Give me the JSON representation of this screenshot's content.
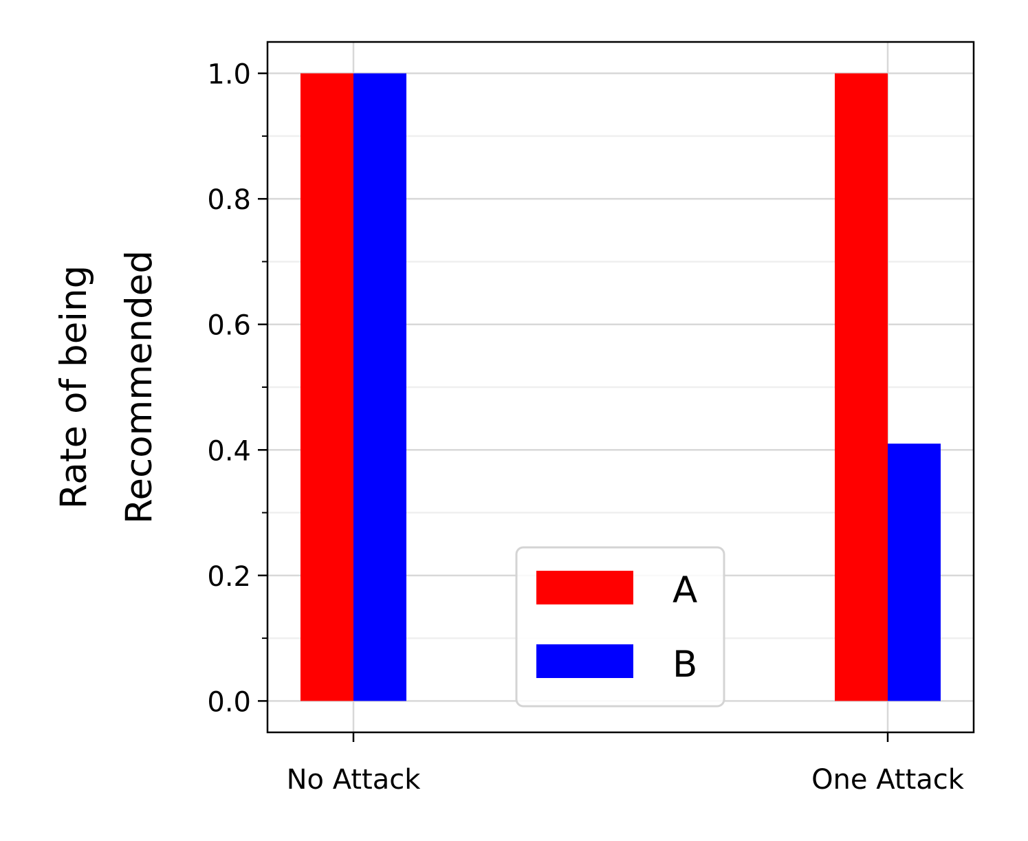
{
  "chart_data": {
    "type": "bar",
    "categories": [
      "No Attack",
      "One Attack"
    ],
    "series": [
      {
        "name": "A",
        "values": [
          1.0,
          1.0
        ],
        "color": "#ff0000"
      },
      {
        "name": "B",
        "values": [
          1.0,
          0.41
        ],
        "color": "#0000ff"
      }
    ],
    "ylabel_lines": [
      "Rate of being",
      "Recommended"
    ],
    "xlabel": "",
    "title": "",
    "ylim": [
      -0.05,
      1.05
    ],
    "y_ticks": [
      0.0,
      0.2,
      0.4,
      0.6,
      0.8,
      1.0
    ],
    "y_tick_labels": [
      "0.0",
      "0.2",
      "0.4",
      "0.6",
      "0.8",
      "1.0"
    ],
    "y_minor_ticks": [
      0.1,
      0.3,
      0.5,
      0.7,
      0.9
    ],
    "grid": true,
    "legend_position": "lower center"
  }
}
